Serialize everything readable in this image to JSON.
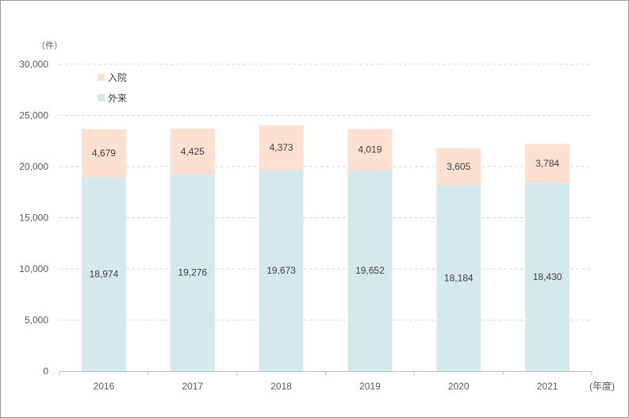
{
  "chart_data": {
    "type": "bar",
    "stacked": true,
    "categories": [
      "2016",
      "2017",
      "2018",
      "2019",
      "2020",
      "2021"
    ],
    "series": [
      {
        "name": "外来",
        "values": [
          18974,
          19276,
          19673,
          19652,
          18184,
          18430
        ],
        "color": "#d5e8eb"
      },
      {
        "name": "入院",
        "values": [
          4679,
          4425,
          4373,
          4019,
          3605,
          3784
        ],
        "color": "#fde0cf"
      }
    ],
    "value_labels": {
      "外来": [
        "18,974",
        "19,276",
        "19,673",
        "19,652",
        "18,184",
        "18,430"
      ],
      "入院": [
        "4,679",
        "4,425",
        "4,373",
        "4,019",
        "3,605",
        "3,784"
      ]
    },
    "yticks": [
      0,
      5000,
      10000,
      15000,
      20000,
      25000,
      30000
    ],
    "ytick_labels": [
      "0",
      "5,000",
      "10,000",
      "15,000",
      "20,000",
      "25,000",
      "30,000"
    ],
    "ylim": [
      0,
      30000
    ],
    "y_unit": "（件）",
    "x_unit": "(年度)",
    "grid": "horizontal-dashed",
    "legend_position": "top-left",
    "legend_order": [
      "入院",
      "外来"
    ]
  }
}
